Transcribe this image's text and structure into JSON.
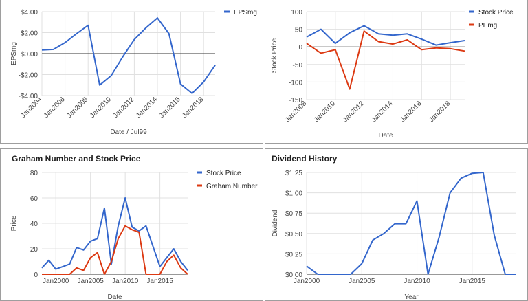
{
  "chart_data": [
    {
      "type": "line",
      "title": "",
      "xlabel": "Date / Jul99",
      "ylabel": "EPSmg",
      "ylim": [
        -4,
        4
      ],
      "xlim": [
        2004,
        2019
      ],
      "y_ticks": [
        "$4.00",
        "$2.00",
        "$0.00",
        "-$2.00",
        "-$4.00"
      ],
      "x_ticks": [
        "Jan2004",
        "Jan2006",
        "Jan2008",
        "Jan2010",
        "Jan2012",
        "Jan2014",
        "Jan2016",
        "Jan2018"
      ],
      "legend_position": "top-right",
      "x": [
        2004,
        2005,
        2006,
        2007,
        2008,
        2009,
        2010,
        2011,
        2012,
        2013,
        2014,
        2015,
        2016,
        2017,
        2018,
        2019
      ],
      "series": [
        {
          "name": "EPSmg",
          "color": "#3366cc",
          "values": [
            0.35,
            0.4,
            1.05,
            1.9,
            2.7,
            -3.0,
            -2.1,
            -0.3,
            1.35,
            2.45,
            3.4,
            1.9,
            -2.9,
            -3.8,
            -2.7,
            -1.1
          ]
        }
      ]
    },
    {
      "type": "line",
      "title": "",
      "xlabel": "Date",
      "ylabel": "Stock Price",
      "ylim": [
        -150,
        100
      ],
      "xlim": [
        2008,
        2019
      ],
      "y_ticks": [
        "100",
        "50",
        "0",
        "-50",
        "-100",
        "-150"
      ],
      "x_ticks": [
        "Jan2008",
        "Jan2010",
        "Jan2012",
        "Jan2014",
        "Jan2016",
        "Jan2018"
      ],
      "legend_position": "top-right",
      "x": [
        2008,
        2009,
        2010,
        2011,
        2012,
        2013,
        2014,
        2015,
        2016,
        2017,
        2018,
        2019
      ],
      "series": [
        {
          "name": "Stock Price",
          "color": "#3366cc",
          "values": [
            28,
            50,
            10,
            40,
            60,
            37,
            33,
            37,
            22,
            5,
            12,
            18
          ]
        },
        {
          "name": "PEmg",
          "color": "#dc3912",
          "values": [
            10,
            -18,
            -8,
            -120,
            45,
            15,
            8,
            20,
            -8,
            -3,
            -5,
            -12
          ]
        }
      ]
    },
    {
      "type": "line",
      "title": "Graham Number and Stock Price",
      "xlabel": "Date",
      "ylabel": "Price",
      "ylim": [
        0,
        80
      ],
      "xlim": [
        1998,
        2019
      ],
      "y_ticks": [
        "80",
        "60",
        "40",
        "20",
        "0"
      ],
      "x_ticks": [
        "Jan2000",
        "Jan2005",
        "Jan2010",
        "Jan2015"
      ],
      "legend_position": "top-right",
      "x": [
        1998,
        1999,
        2000,
        2001,
        2002,
        2003,
        2004,
        2005,
        2006,
        2007,
        2008,
        2009,
        2010,
        2011,
        2012,
        2013,
        2014,
        2015,
        2016,
        2017,
        2018,
        2019
      ],
      "series": [
        {
          "name": "Stock Price",
          "color": "#3366cc",
          "values": [
            5,
            11,
            4,
            6,
            8,
            21,
            19,
            26,
            28,
            52,
            8,
            38,
            60,
            37,
            34,
            38,
            22,
            6,
            13,
            20,
            10,
            3
          ]
        },
        {
          "name": "Graham Number",
          "color": "#dc3912",
          "values": [
            0,
            0,
            0,
            0,
            0,
            5,
            3,
            13,
            17,
            0,
            10,
            28,
            38,
            35,
            33,
            0,
            0,
            0,
            10,
            15,
            5,
            0
          ]
        }
      ]
    },
    {
      "type": "line",
      "title": "Dividend History",
      "xlabel": "Year",
      "ylabel": "Dividend",
      "ylim": [
        0,
        1.25
      ],
      "xlim": [
        2000,
        2019
      ],
      "y_ticks": [
        "$1.25",
        "$1.00",
        "$0.75",
        "$0.50",
        "$0.25",
        "$0.00"
      ],
      "x_ticks": [
        "Jan2000",
        "Jan2005",
        "Jan2010",
        "Jan2015"
      ],
      "legend_position": "none",
      "x": [
        2000,
        2001,
        2002,
        2003,
        2004,
        2005,
        2006,
        2007,
        2008,
        2009,
        2010,
        2011,
        2012,
        2013,
        2014,
        2015,
        2016,
        2017,
        2018,
        2019
      ],
      "series": [
        {
          "name": "",
          "color": "#3366cc",
          "values": [
            0.1,
            0,
            0,
            0,
            0,
            0.13,
            0.42,
            0.5,
            0.62,
            0.62,
            0.9,
            0,
            0.45,
            1.0,
            1.18,
            1.24,
            1.25,
            0.48,
            0,
            0
          ]
        }
      ]
    }
  ]
}
